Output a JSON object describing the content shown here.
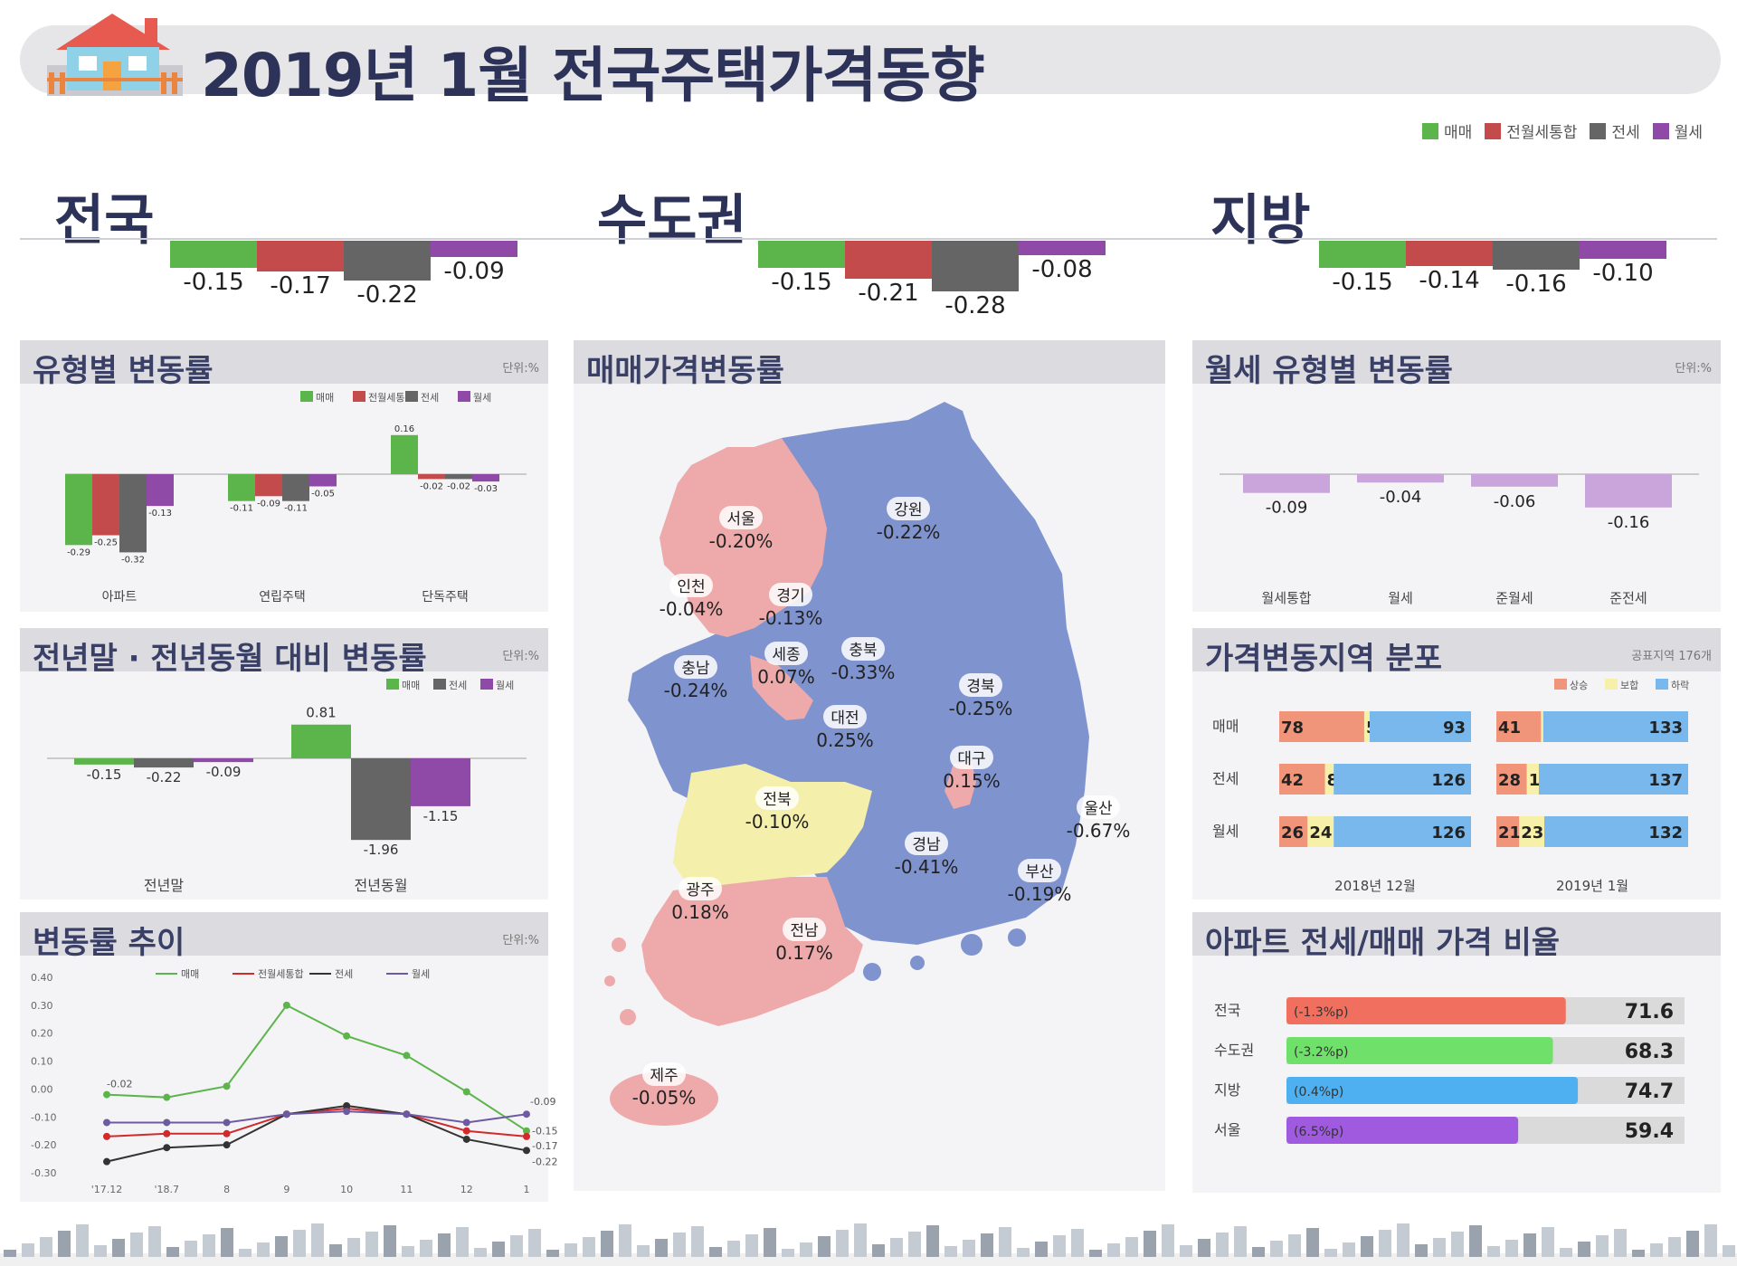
{
  "title": "2019년 1월 전국주택가격동향",
  "legend": [
    {
      "name": "매매",
      "color": "#5cb54b"
    },
    {
      "name": "전월세통합",
      "color": "#c44b4b"
    },
    {
      "name": "전세",
      "color": "#656565"
    },
    {
      "name": "월세",
      "color": "#8e4aa6"
    }
  ],
  "colors": {
    "up": "#f0957a",
    "flat": "#f7f0a8",
    "down": "#78b8ec",
    "header": "#dcdce0"
  },
  "icons": {
    "logo": "house-icon",
    "footer": "city-skyline"
  },
  "chart_data": [
    {
      "type": "bar",
      "title": "전국",
      "categories": [
        "매매",
        "전월세통합",
        "전세",
        "월세"
      ],
      "values": [
        -0.15,
        -0.17,
        -0.22,
        -0.09
      ]
    },
    {
      "type": "bar",
      "title": "수도권",
      "categories": [
        "매매",
        "전월세통합",
        "전세",
        "월세"
      ],
      "values": [
        -0.15,
        -0.21,
        -0.28,
        -0.08
      ]
    },
    {
      "type": "bar",
      "title": "지방",
      "categories": [
        "매매",
        "전월세통합",
        "전세",
        "월세"
      ],
      "values": [
        -0.15,
        -0.14,
        -0.16,
        -0.1
      ]
    },
    {
      "type": "bar",
      "title": "유형별 변동률",
      "unit": "단위:%",
      "categories": [
        "아파트",
        "연립주택",
        "단독주택"
      ],
      "series": [
        {
          "name": "매매",
          "values": [
            -0.29,
            -0.11,
            0.16
          ]
        },
        {
          "name": "전월세통합",
          "values": [
            -0.25,
            -0.09,
            -0.02
          ]
        },
        {
          "name": "전세",
          "values": [
            -0.32,
            -0.11,
            -0.02
          ]
        },
        {
          "name": "월세",
          "values": [
            -0.13,
            -0.05,
            -0.03
          ]
        }
      ]
    },
    {
      "type": "bar",
      "title": "전년말 · 전년동월 대비 변동률",
      "unit": "단위:%",
      "categories": [
        "전년말",
        "전년동월"
      ],
      "series": [
        {
          "name": "매매",
          "values": [
            -0.15,
            0.81
          ]
        },
        {
          "name": "전세",
          "values": [
            -0.22,
            -1.96
          ]
        },
        {
          "name": "월세",
          "values": [
            -0.09,
            -1.15
          ]
        }
      ]
    },
    {
      "type": "line",
      "title": "변동률 추이",
      "unit": "단위:%",
      "x": [
        "'17.12",
        "'18.7",
        "8",
        "9",
        "10",
        "11",
        "12",
        "1"
      ],
      "y_ticks": [
        "0.40",
        "0.30",
        "0.20",
        "0.10",
        "0.00",
        "-0.10",
        "-0.20",
        "-0.30"
      ],
      "ylim": [
        -0.3,
        0.4
      ],
      "series": [
        {
          "name": "매매",
          "values": [
            -0.02,
            -0.03,
            0.01,
            0.3,
            0.19,
            0.12,
            -0.01,
            -0.15
          ]
        },
        {
          "name": "전월세통합",
          "values": [
            -0.17,
            -0.16,
            -0.16,
            -0.09,
            -0.07,
            -0.09,
            -0.15,
            -0.17
          ]
        },
        {
          "name": "전세",
          "values": [
            -0.26,
            -0.21,
            -0.2,
            -0.09,
            -0.06,
            -0.09,
            -0.18,
            -0.22
          ]
        },
        {
          "name": "월세",
          "values": [
            -0.12,
            -0.12,
            -0.12,
            -0.09,
            -0.08,
            -0.09,
            -0.12,
            -0.09
          ]
        }
      ],
      "labels": [
        "-0.02",
        "-0.15",
        "-0.09",
        "-0.15",
        "-0.17",
        "-0.22"
      ]
    },
    {
      "type": "bar",
      "title": "월세 유형별 변동률",
      "unit": "단위:%",
      "categories": [
        "월세통합",
        "월세",
        "준월세",
        "준전세"
      ],
      "values": [
        -0.09,
        -0.04,
        -0.06,
        -0.16
      ]
    },
    {
      "type": "bar",
      "title": "가격변동지역 분포",
      "unit": "공표지역 176개",
      "stacked": true,
      "legend": [
        "상승",
        "보합",
        "하락"
      ],
      "groups": [
        "2018년 12월",
        "2019년 1월"
      ],
      "rows": [
        "매매",
        "전세",
        "월세"
      ],
      "values": {
        "2018년 12월": [
          [
            78,
            5,
            93
          ],
          [
            42,
            8,
            126
          ],
          [
            26,
            24,
            126
          ]
        ],
        "2019년 1월": [
          [
            41,
            2,
            133
          ],
          [
            28,
            11,
            137
          ],
          [
            21,
            23,
            132
          ]
        ]
      }
    },
    {
      "type": "bar",
      "title": "아파트 전세/매매 가격 비율",
      "categories": [
        "전국",
        "수도권",
        "지방",
        "서울"
      ],
      "values": [
        71.6,
        68.3,
        74.7,
        59.4
      ],
      "changes": [
        "(-1.3%p)",
        "(-3.2%p)",
        "(0.4%p)",
        "(6.5%p)"
      ],
      "colors": [
        "#f06f5e",
        "#6fe06a",
        "#4eb0f0",
        "#a05ae0"
      ]
    }
  ],
  "map": {
    "title": "매매가격변동률",
    "regions": [
      {
        "name": "서울",
        "value": "-0.20%"
      },
      {
        "name": "인천",
        "value": "-0.04%"
      },
      {
        "name": "경기",
        "value": "-0.13%"
      },
      {
        "name": "강원",
        "value": "-0.22%"
      },
      {
        "name": "충북",
        "value": "-0.33%"
      },
      {
        "name": "세종",
        "value": "0.07%"
      },
      {
        "name": "충남",
        "value": "-0.24%"
      },
      {
        "name": "대전",
        "value": "0.25%"
      },
      {
        "name": "경북",
        "value": "-0.25%"
      },
      {
        "name": "대구",
        "value": "0.15%"
      },
      {
        "name": "전북",
        "value": "-0.10%"
      },
      {
        "name": "울산",
        "value": "-0.67%"
      },
      {
        "name": "경남",
        "value": "-0.41%"
      },
      {
        "name": "부산",
        "value": "-0.19%"
      },
      {
        "name": "광주",
        "value": "0.18%"
      },
      {
        "name": "전남",
        "value": "0.17%"
      },
      {
        "name": "제주",
        "value": "-0.05%"
      }
    ]
  }
}
